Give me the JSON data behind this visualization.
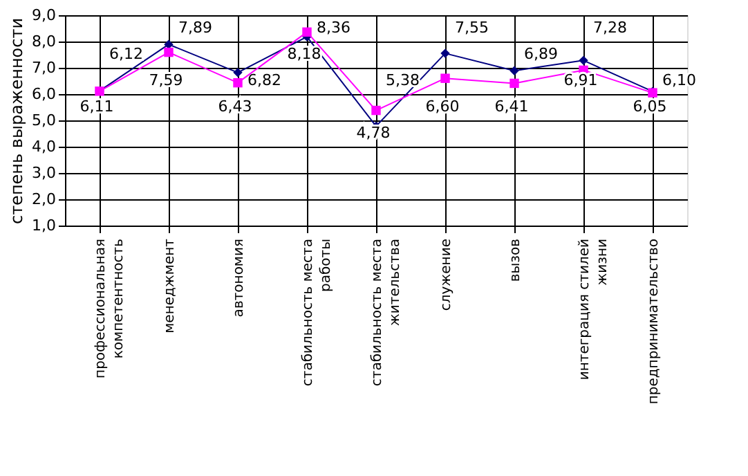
{
  "chart_data": {
    "type": "line",
    "ylabel": "степень выраженности",
    "categories": [
      "профессиональная\nкомпетентность",
      "менеджмент",
      "автономия",
      "стабильность места\nработы",
      "стабильность места\nжительства",
      "служение",
      "вызов",
      "интеграция стилей\nжизни",
      "предпринимательство"
    ],
    "series": [
      {
        "color": "#000080",
        "marker": "diamond",
        "values": [
          6.12,
          7.89,
          6.82,
          8.18,
          4.78,
          7.55,
          6.89,
          7.28,
          6.1
        ],
        "value_labels": [
          "6,12",
          "7,89",
          "6,82",
          "8,18",
          "4,78",
          "7,55",
          "6,89",
          "7,28",
          "6,10"
        ]
      },
      {
        "color": "#ff00ff",
        "marker": "square",
        "values": [
          6.11,
          7.59,
          6.43,
          8.36,
          5.38,
          6.6,
          6.41,
          6.91,
          6.05
        ],
        "value_labels": [
          "6,11",
          "7,59",
          "6,43",
          "8,36",
          "5,38",
          "6,60",
          "6,41",
          "6,91",
          "6,05"
        ]
      }
    ],
    "ylim": [
      1,
      9
    ],
    "yticks": [
      {
        "value": 1,
        "label": "1,0"
      },
      {
        "value": 2,
        "label": "2,0"
      },
      {
        "value": 3,
        "label": "3,0"
      },
      {
        "value": 4,
        "label": "4,0"
      },
      {
        "value": 5,
        "label": "5,0"
      },
      {
        "value": 6,
        "label": "6,0"
      },
      {
        "value": 7,
        "label": "7,0"
      },
      {
        "value": 8,
        "label": "8,0"
      },
      {
        "value": 9,
        "label": "9,0"
      }
    ],
    "grid": true
  }
}
